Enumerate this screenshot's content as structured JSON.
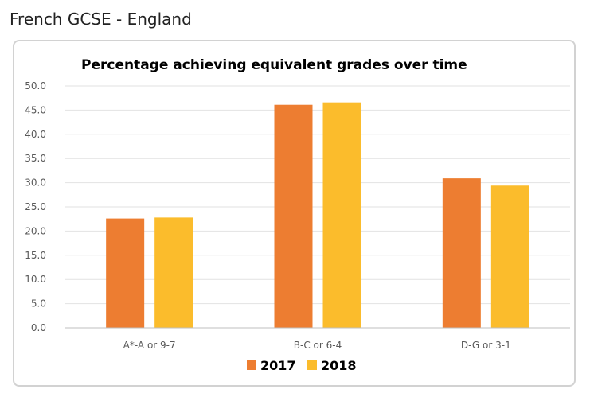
{
  "page": {
    "title": "French GCSE - England"
  },
  "chart_data": {
    "type": "bar",
    "title": "Percentage achieving equivalent grades over time",
    "xlabel": "",
    "ylabel": "",
    "categories": [
      "A*-A or 9-7",
      "B-C or 6-4",
      "D-G or 3-1"
    ],
    "series": [
      {
        "name": "2017",
        "color": "#ed7d31",
        "values": [
          22.6,
          46.1,
          30.9
        ]
      },
      {
        "name": "2018",
        "color": "#fbbc2c",
        "values": [
          22.8,
          46.6,
          29.4
        ]
      }
    ],
    "ylim": [
      0,
      50
    ],
    "yticks": [
      "0.0",
      "5.0",
      "10.0",
      "15.0",
      "20.0",
      "25.0",
      "30.0",
      "35.0",
      "40.0",
      "45.0",
      "50.0"
    ],
    "grid": true,
    "legend_position": "bottom"
  }
}
